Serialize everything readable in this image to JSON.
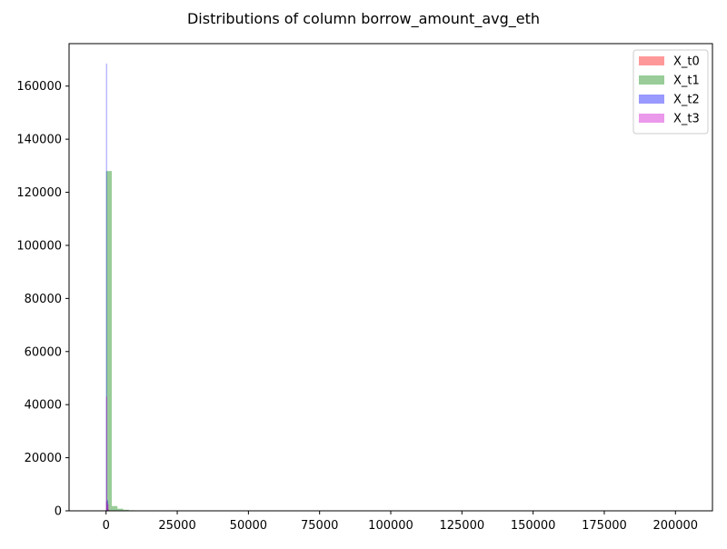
{
  "chart_data": {
    "type": "histogram",
    "title": "Distributions of column borrow_amount_avg_eth",
    "xlabel": "",
    "ylabel": "",
    "xlim": [
      -13000,
      213000
    ],
    "ylim": [
      0,
      176000
    ],
    "xticks": [
      0,
      25000,
      50000,
      75000,
      100000,
      125000,
      150000,
      175000,
      200000
    ],
    "xtick_labels": [
      "0",
      "25000",
      "50000",
      "75000",
      "100000",
      "125000",
      "150000",
      "175000",
      "200000"
    ],
    "yticks": [
      0,
      20000,
      40000,
      60000,
      80000,
      100000,
      120000,
      140000,
      160000
    ],
    "ytick_labels": [
      "0",
      "20000",
      "40000",
      "60000",
      "80000",
      "100000",
      "120000",
      "140000",
      "160000"
    ],
    "grid": false,
    "legend_position": "top-right",
    "series": [
      {
        "name": "X_t0",
        "color": "#ff0000",
        "alpha": 0.4,
        "bins": [
          {
            "x0": 0,
            "x1": 500,
            "count": 3500
          },
          {
            "x0": 500,
            "x1": 1000,
            "count": 600
          }
        ]
      },
      {
        "name": "X_t1",
        "color": "#008000",
        "alpha": 0.4,
        "bins": [
          {
            "x0": 0,
            "x1": 2000,
            "count": 128000
          },
          {
            "x0": 2000,
            "x1": 4000,
            "count": 1800
          },
          {
            "x0": 4000,
            "x1": 6000,
            "count": 800
          },
          {
            "x0": 6000,
            "x1": 8000,
            "count": 400
          },
          {
            "x0": 8000,
            "x1": 10000,
            "count": 200
          }
        ]
      },
      {
        "name": "X_t2",
        "color": "#0000ff",
        "alpha": 0.4,
        "bins": [
          {
            "x0": 0,
            "x1": 300,
            "count": 168500
          },
          {
            "x0": 300,
            "x1": 700,
            "count": 4000
          }
        ]
      },
      {
        "name": "X_t3",
        "color": "#cc00cc",
        "alpha": 0.4,
        "bins": [
          {
            "x0": 0,
            "x1": 400,
            "count": 43000
          },
          {
            "x0": 400,
            "x1": 900,
            "count": 2500
          }
        ]
      }
    ]
  }
}
